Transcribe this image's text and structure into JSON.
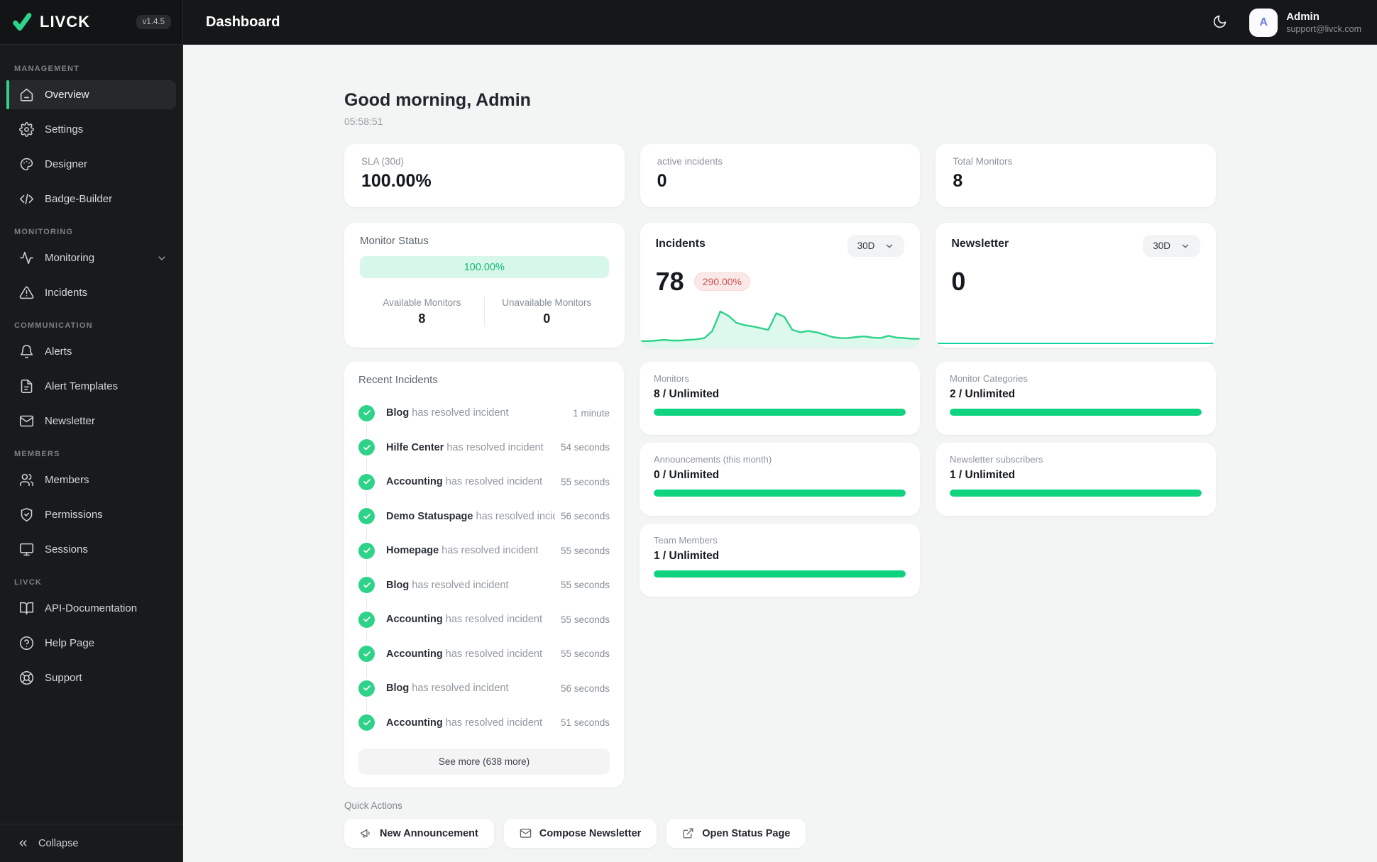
{
  "app": {
    "logo_text": "LIVCK",
    "version": "v1.4.5",
    "accent_green": "#2ED389",
    "bar_green": "#0FD37F"
  },
  "topbar": {
    "title": "Dashboard",
    "theme_toggle_icon": "moon-icon",
    "avatar_letter": "A",
    "user_name": "Admin",
    "user_email": "support@livck.com"
  },
  "sidebar": {
    "sections": [
      {
        "label": "MANAGEMENT",
        "items": [
          {
            "label": "Overview",
            "icon": "home-icon",
            "active": true
          },
          {
            "label": "Settings",
            "icon": "gear-icon"
          },
          {
            "label": "Designer",
            "icon": "palette-icon"
          },
          {
            "label": "Badge-Builder",
            "icon": "code-icon"
          }
        ]
      },
      {
        "label": "MONITORING",
        "items": [
          {
            "label": "Monitoring",
            "icon": "activity-icon",
            "chevron": true
          },
          {
            "label": "Incidents",
            "icon": "warning-triangle-icon"
          }
        ]
      },
      {
        "label": "COMMUNICATION",
        "items": [
          {
            "label": "Alerts",
            "icon": "bell-icon"
          },
          {
            "label": "Alert Templates",
            "icon": "file-text-icon"
          },
          {
            "label": "Newsletter",
            "icon": "mail-icon"
          }
        ]
      },
      {
        "label": "MEMBERS",
        "items": [
          {
            "label": "Members",
            "icon": "users-icon"
          },
          {
            "label": "Permissions",
            "icon": "shield-check-icon"
          },
          {
            "label": "Sessions",
            "icon": "monitor-icon"
          }
        ]
      },
      {
        "label": "LIVCK",
        "items": [
          {
            "label": "API-Documentation",
            "icon": "book-open-icon"
          },
          {
            "label": "Help Page",
            "icon": "help-circle-icon"
          },
          {
            "label": "Support",
            "icon": "life-buoy-icon"
          }
        ]
      }
    ],
    "collapse_label": "Collapse",
    "collapse_icon": "chevrons-left-icon"
  },
  "greeting": {
    "title": "Good morning, Admin",
    "time": "05:58:51"
  },
  "stats": [
    {
      "label": "SLA (30d)",
      "value": "100.00%"
    },
    {
      "label": "active incidents",
      "value": "0"
    },
    {
      "label": "Total Monitors",
      "value": "8"
    }
  ],
  "monitor_status": {
    "title": "Monitor Status",
    "uptime": "100.00%",
    "available_label": "Available Monitors",
    "available_value": "8",
    "unavailable_label": "Unavailable Monitors",
    "unavailable_value": "0"
  },
  "incidents_card": {
    "title": "Incidents",
    "range": "30D",
    "value": "78",
    "delta": "290.00%"
  },
  "newsletter_card": {
    "title": "Newsletter",
    "range": "30D",
    "value": "0"
  },
  "usage_cards": [
    {
      "label": "Monitors",
      "value": "8 / Unlimited",
      "fill": 1
    },
    {
      "label": "Monitor Categories",
      "value": "2 / Unlimited",
      "fill": 1
    },
    {
      "label": "Announcements (this month)",
      "value": "0 / Unlimited",
      "fill": 1
    },
    {
      "label": "Newsletter subscribers",
      "value": "1 / Unlimited",
      "fill": 1
    },
    {
      "label": "Team Members",
      "value": "1 / Unlimited",
      "fill": 1
    }
  ],
  "recent_incidents": {
    "title": "Recent Incidents",
    "resolved_text": "has resolved incident",
    "items": [
      {
        "name": "Blog",
        "time": "1 minute"
      },
      {
        "name": "Hilfe Center",
        "time": "54 seconds"
      },
      {
        "name": "Accounting",
        "time": "55 seconds"
      },
      {
        "name": "Demo Statuspage",
        "time": "56 seconds"
      },
      {
        "name": "Homepage",
        "time": "55 seconds"
      },
      {
        "name": "Blog",
        "time": "55 seconds"
      },
      {
        "name": "Accounting",
        "time": "55 seconds"
      },
      {
        "name": "Accounting",
        "time": "55 seconds"
      },
      {
        "name": "Blog",
        "time": "56 seconds"
      },
      {
        "name": "Accounting",
        "time": "51 seconds"
      }
    ],
    "see_more": "See more (638 more)"
  },
  "quick_actions": {
    "label": "Quick Actions",
    "buttons": [
      {
        "label": "New Announcement",
        "icon": "megaphone-icon"
      },
      {
        "label": "Compose Newsletter",
        "icon": "mail-icon"
      },
      {
        "label": "Open Status Page",
        "icon": "external-link-icon"
      }
    ]
  },
  "chart_data": [
    {
      "id": "incidents-sparkline",
      "type": "area",
      "title": "Incidents (30D)",
      "xlabel": "",
      "ylabel": "",
      "axes_visible": false,
      "note": "unlabeled sparkline; values are estimated relative heights 0-60",
      "values": [
        5,
        5,
        6,
        7,
        6,
        6,
        7,
        8,
        10,
        22,
        55,
        48,
        36,
        32,
        30,
        27,
        24,
        52,
        46,
        24,
        20,
        22,
        20,
        16,
        12,
        10,
        10,
        12,
        13,
        11,
        10,
        14,
        11,
        10,
        9,
        9
      ],
      "line_color": "#2ED389",
      "fill_color": "rgba(46,211,137,0.16)"
    },
    {
      "id": "newsletter-sparkline",
      "type": "line",
      "title": "Newsletter (30D)",
      "axes_visible": false,
      "values": [
        0,
        0
      ],
      "line_color": "#10D5A0"
    }
  ]
}
